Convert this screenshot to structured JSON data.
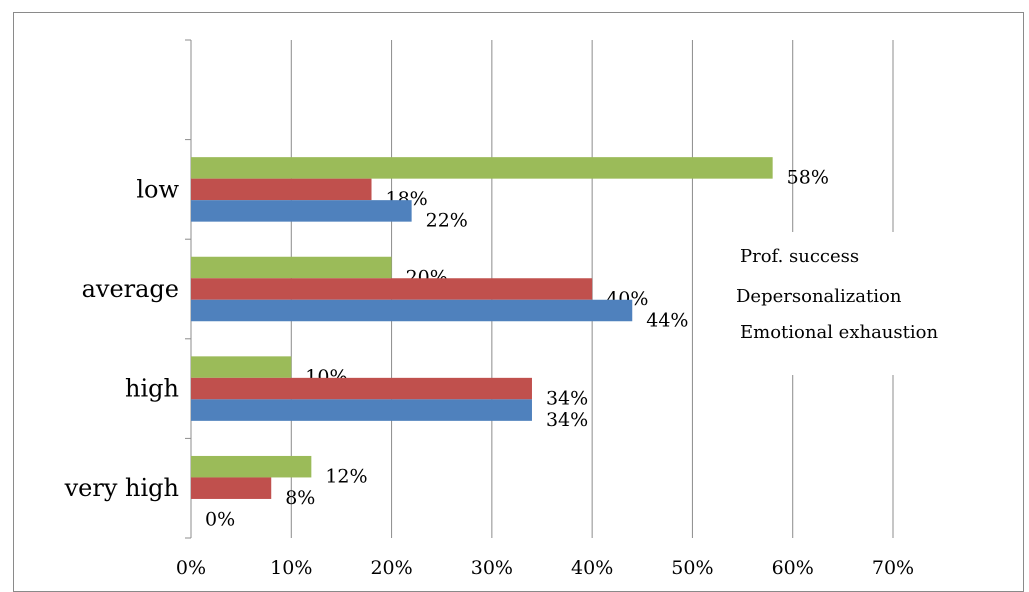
{
  "chart_data": {
    "type": "bar",
    "orientation": "horizontal",
    "categories": [
      "low",
      "average",
      "high",
      "very high"
    ],
    "series": [
      {
        "name": "Prof. success",
        "color": "#9BBB59",
        "values": [
          58,
          20,
          10,
          12
        ],
        "labels": [
          "58%",
          "20%",
          "10%",
          "12%"
        ]
      },
      {
        "name": "Depersonalization",
        "color": "#C0504D",
        "values": [
          18,
          40,
          34,
          8
        ],
        "labels": [
          "18%",
          "40%",
          "34%",
          "8%"
        ]
      },
      {
        "name": "Emotional exhaustion",
        "color": "#4F81BD",
        "values": [
          22,
          44,
          34,
          0
        ],
        "labels": [
          "22%",
          "44%",
          "34%",
          "0%"
        ]
      }
    ],
    "xlim": [
      0,
      70
    ],
    "xticks": [
      0,
      10,
      20,
      30,
      40,
      50,
      60,
      70
    ],
    "xtick_labels": [
      "0%",
      "10%",
      "20%",
      "30%",
      "40%",
      "50%",
      "60%",
      "70%"
    ],
    "grid": true,
    "legend": "right",
    "title": "",
    "xlabel": "",
    "ylabel": ""
  }
}
